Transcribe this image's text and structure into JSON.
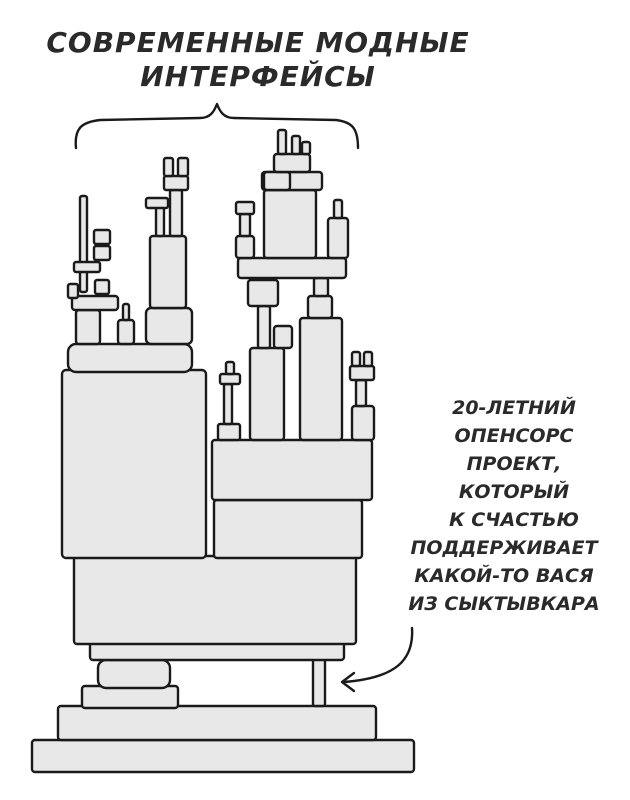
{
  "title": {
    "lines": [
      "СОВРЕМЕННЫЕ МОДНЫЕ",
      "ИНТЕРФЕЙСЫ"
    ]
  },
  "annotation": {
    "lines": [
      "20-ЛЕТНИЙ",
      "ОПЕНСОРС",
      "ПРОЕКТ,",
      "КОТОРЫЙ",
      "К СЧАСТЬЮ",
      "ПОДДЕРЖИВАЕТ",
      "КАКОЙ-ТО ВАСЯ",
      "ИЗ СЫКТЫВКАРА"
    ]
  },
  "colors": {
    "ink": "#1a1a1a",
    "block_fill": "#e8e8e8",
    "background": "#ffffff"
  }
}
